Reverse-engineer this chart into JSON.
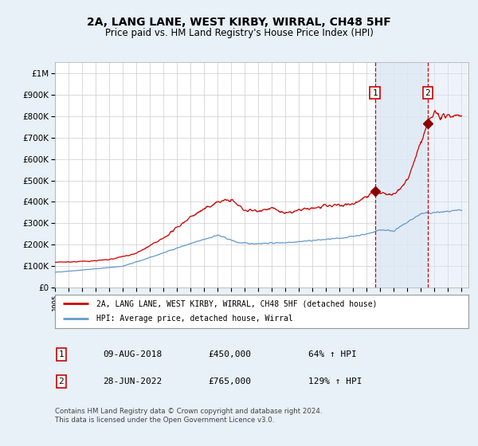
{
  "title": "2A, LANG LANE, WEST KIRBY, WIRRAL, CH48 5HF",
  "subtitle": "Price paid vs. HM Land Registry's House Price Index (HPI)",
  "legend_line1": "2A, LANG LANE, WEST KIRBY, WIRRAL, CH48 5HF (detached house)",
  "legend_line2": "HPI: Average price, detached house, Wirral",
  "annotation1_date": "09-AUG-2018",
  "annotation1_price": "£450,000",
  "annotation1_pct": "64% ↑ HPI",
  "annotation2_date": "28-JUN-2022",
  "annotation2_price": "£765,000",
  "annotation2_pct": "129% ↑ HPI",
  "footer": "Contains HM Land Registry data © Crown copyright and database right 2024.\nThis data is licensed under the Open Government Licence v3.0.",
  "red_line_color": "#cc0000",
  "blue_line_color": "#6699cc",
  "bg_color": "#e8f0f8",
  "plot_bg_color": "#ffffff",
  "grid_color": "#cccccc",
  "highlight_bg": "#dce8f5",
  "dashed_line_color": "#cc0000",
  "marker_color": "#8b0000",
  "ylim_min": 0,
  "ylim_max": 1050000,
  "sale1_year": 2018.6,
  "sale1_value": 450000,
  "sale2_year": 2022.5,
  "sale2_value": 765000,
  "xmin": 1995,
  "xmax": 2025.5
}
